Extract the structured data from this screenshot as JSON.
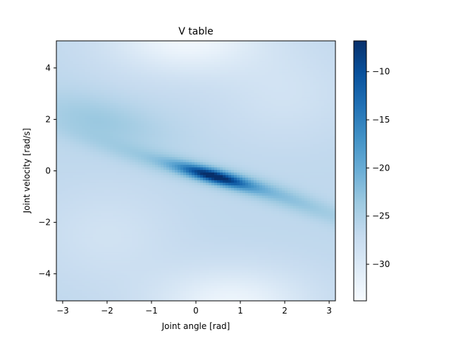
{
  "chart_data": {
    "type": "heatmap",
    "title": "V table",
    "xlabel": "Joint angle [rad]",
    "ylabel": "Joint velocity [rad/s]",
    "xlim": [
      -3.1416,
      3.1416
    ],
    "ylim": [
      -5.05,
      5.05
    ],
    "x_ticks": [
      -3,
      -2,
      -1,
      0,
      1,
      2,
      3
    ],
    "x_tick_labels": [
      "−3",
      "−2",
      "−1",
      "0",
      "1",
      "2",
      "3"
    ],
    "y_ticks": [
      -4,
      -2,
      0,
      2,
      4
    ],
    "y_tick_labels": [
      "−4",
      "−2",
      "0",
      "2",
      "4"
    ],
    "colorbar": {
      "cmap": "Blues",
      "range": [
        -33.8,
        -6.8
      ],
      "ticks": [
        -30,
        -25,
        -20,
        -15,
        -10
      ],
      "tick_labels": [
        "−30",
        "−25",
        "−20",
        "−15",
        "−10"
      ]
    },
    "grid": false,
    "description_of_values": "Value function over joint angle and joint velocity: highest (about -7) near angle 0.3, velocity -0.2 along a diagonal ridge from (-1, 0.8) to (3, -1.5); lowest (about -33) near angle 0 with velocity +5 and -5."
  }
}
